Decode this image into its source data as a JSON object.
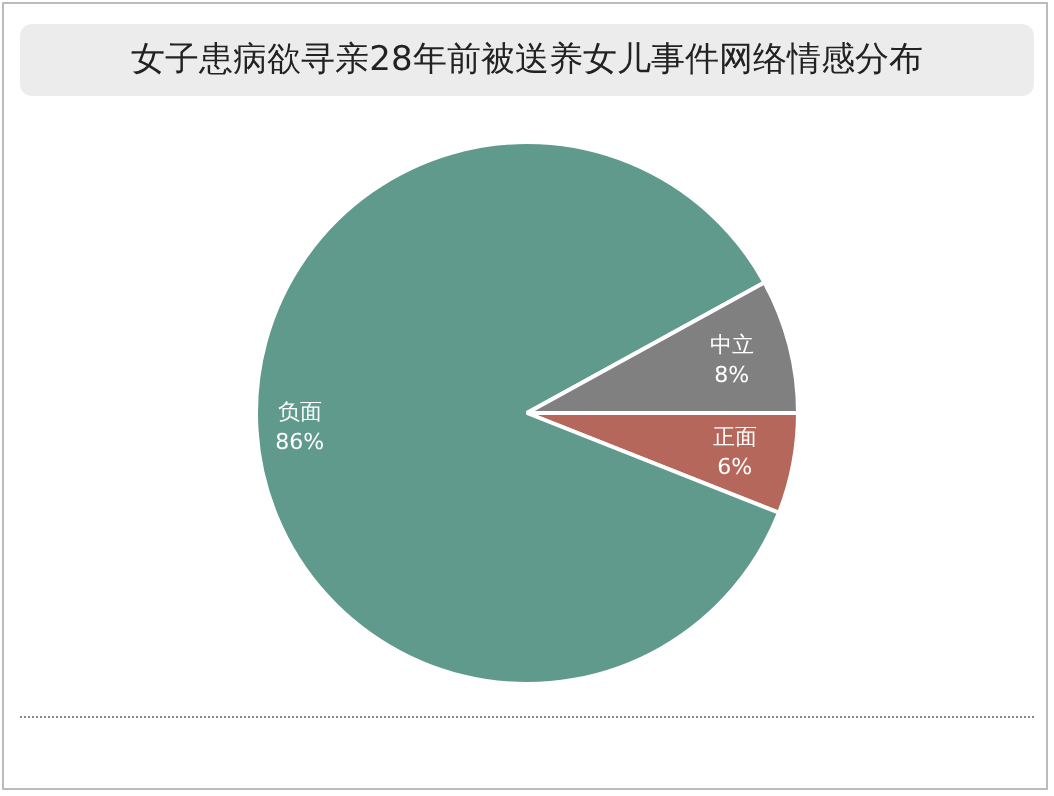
{
  "chart_data": {
    "type": "pie",
    "title": "女子患病欲寻亲28年前被送养女儿事件网络情感分布",
    "categories": [
      "正面",
      "负面",
      "中立"
    ],
    "values": [
      6,
      86,
      8
    ],
    "colors": [
      "#b5675c",
      "#5f9a8c",
      "#808080"
    ],
    "value_labels": [
      "6%",
      "86%",
      "8%"
    ],
    "legend": false
  }
}
